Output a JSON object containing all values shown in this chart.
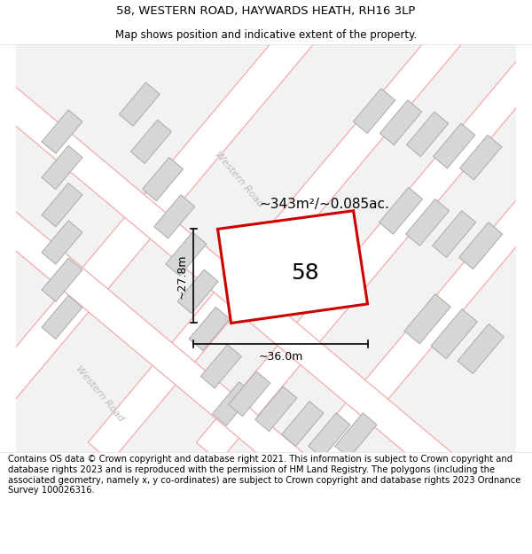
{
  "title": "58, WESTERN ROAD, HAYWARDS HEATH, RH16 3LP",
  "subtitle": "Map shows position and indicative extent of the property.",
  "footer": "Contains OS data © Crown copyright and database right 2021. This information is subject to Crown copyright and database rights 2023 and is reproduced with the permission of HM Land Registry. The polygons (including the associated geometry, namely x, y co-ordinates) are subject to Crown copyright and database rights 2023 Ordnance Survey 100026316.",
  "area_label": "~343m²/~0.085ac.",
  "width_label": "~36.0m",
  "height_label": "~27.8m",
  "property_number": "58",
  "road_label_bottom": "Western Road",
  "road_label_center": "Western Road",
  "title_fontsize": 9.5,
  "subtitle_fontsize": 8.5,
  "footer_fontsize": 7.2,
  "highlight_color": "#e8000000",
  "building_fill": "#d6d6d6",
  "building_edge": "#aaaaaa",
  "road_line_color": "#f5aaaa",
  "property_fill": "#ffffff",
  "map_bg": "#f0f0f0",
  "title_bg": "#ffffff",
  "footer_bg": "#ffffff",
  "road_block_fill": "#e8e8e8",
  "road_block_edge": "#cccccc"
}
